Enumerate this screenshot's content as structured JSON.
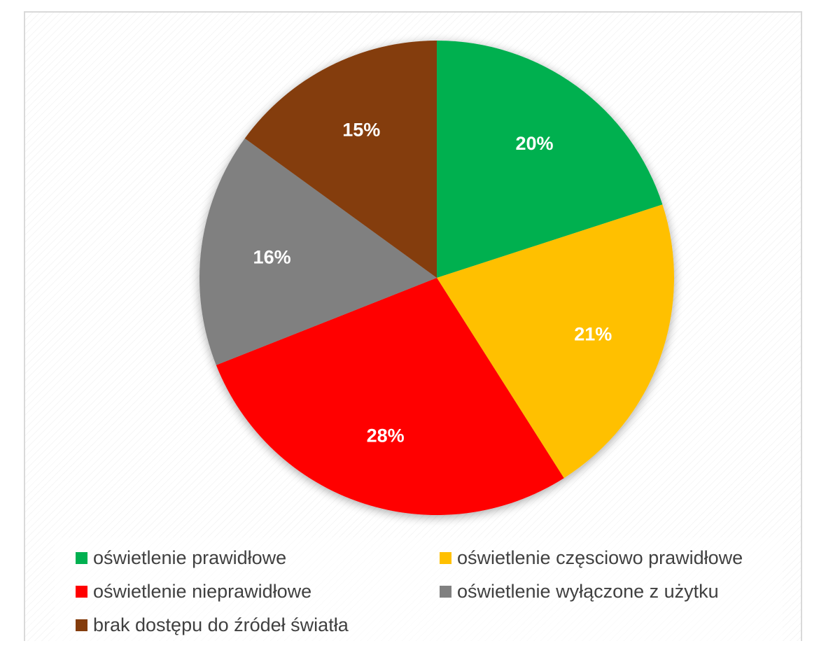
{
  "chart_data": {
    "type": "pie",
    "title": "",
    "slices": [
      {
        "label": "oświetlenie prawidłowe",
        "value": 20,
        "display": "20%",
        "color": "#00B050"
      },
      {
        "label": "oświetlenie częsciowo prawidłowe",
        "value": 21,
        "display": "21%",
        "color": "#FFC000"
      },
      {
        "label": "oświetlenie nieprawidłowe",
        "value": 28,
        "display": "28%",
        "color": "#FF0000"
      },
      {
        "label": "oświetlenie wyłączone z użytku",
        "value": 16,
        "display": "16%",
        "color": "#808080"
      },
      {
        "label": "brak dostępu do źródeł światła",
        "value": 15,
        "display": "15%",
        "color": "#843C0C"
      }
    ],
    "start_angle_deg": 0,
    "direction": "clockwise",
    "legend_position": "bottom"
  },
  "legend": {
    "items": [
      {
        "label": "oświetlenie prawidłowe",
        "color": "#00B050"
      },
      {
        "label": "oświetlenie częsciowo prawidłowe",
        "color": "#FFC000"
      },
      {
        "label": "oświetlenie nieprawidłowe",
        "color": "#FF0000"
      },
      {
        "label": "oświetlenie wyłączone z użytku",
        "color": "#808080"
      },
      {
        "label": "brak dostępu do źródeł światła",
        "color": "#843C0C"
      }
    ]
  }
}
